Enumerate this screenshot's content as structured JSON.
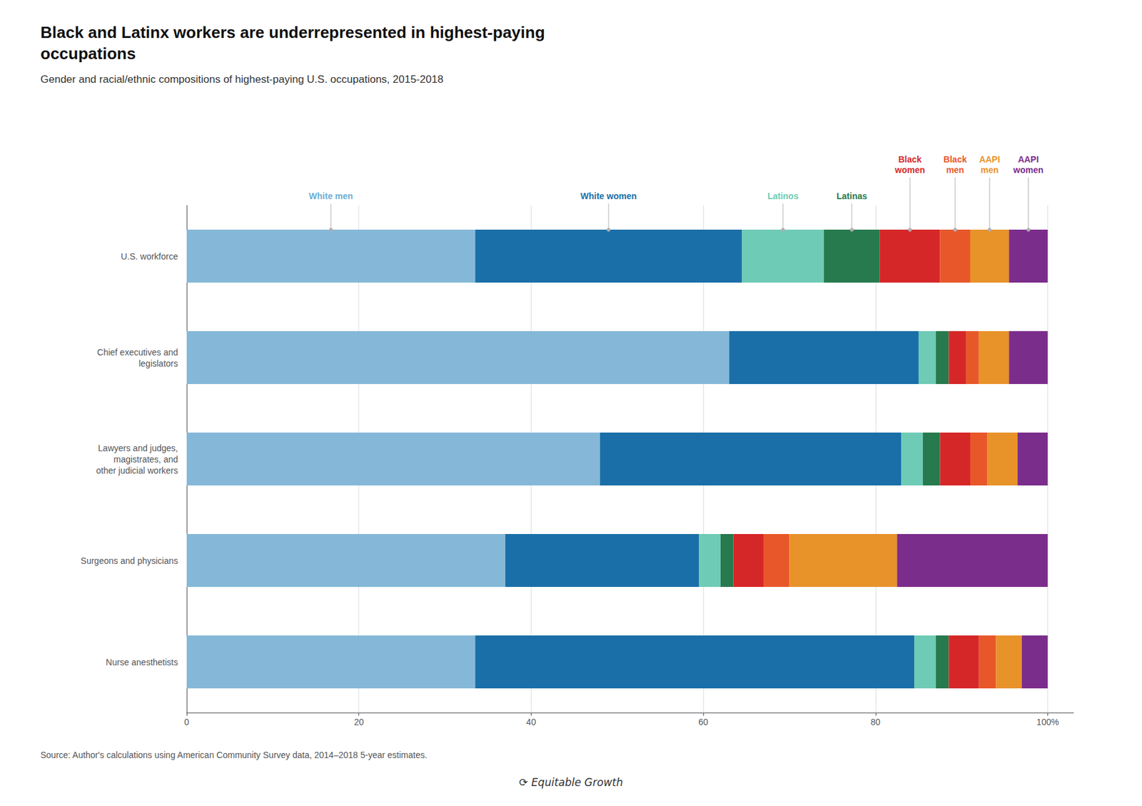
{
  "chart_data": {
    "type": "bar",
    "orientation": "horizontal",
    "stacked": true,
    "grid": true,
    "title": "Black and Latinx workers are underrepresented in highest-paying\noccupations",
    "subtitle": "Gender and racial/ethnic compositions of highest-paying U.S. occupations, 2015-2018",
    "source": "Source: Author's calculations using American Community Survey data, 2014–2018 5-year estimates.",
    "footer": "⟳ Equitable Growth",
    "categories": [
      "U.S. workforce",
      "Chief executives and\nlegislators",
      "Lawyers and judges,\nmagistrates, and\nother judicial workers",
      "Surgeons and physicians",
      "Nurse anesthetists"
    ],
    "series": [
      {
        "name": "White men",
        "color": "#85b8d8",
        "values": [
          33.5,
          63.0,
          48.0,
          37.0,
          33.5
        ]
      },
      {
        "name": "White women",
        "color": "#1a6fa8",
        "values": [
          31.0,
          22.0,
          35.0,
          22.5,
          51.0
        ]
      },
      {
        "name": "Latinos",
        "color": "#6ecbb5",
        "values": [
          9.5,
          2.0,
          2.5,
          2.5,
          2.5
        ]
      },
      {
        "name": "Latinas",
        "color": "#267a4d",
        "values": [
          6.5,
          1.5,
          2.0,
          1.5,
          1.5
        ]
      },
      {
        "name": "Black women",
        "color": "#d62728",
        "values": [
          7.0,
          2.0,
          3.5,
          3.5,
          3.5
        ]
      },
      {
        "name": "Black men",
        "color": "#e8572a",
        "values": [
          3.5,
          1.5,
          2.0,
          3.0,
          2.0
        ]
      },
      {
        "name": "AAPI men",
        "color": "#e8922a",
        "values": [
          4.5,
          3.5,
          3.5,
          12.5,
          3.0
        ]
      },
      {
        "name": "AAPI women",
        "color": "#7b2d8b",
        "values": [
          4.5,
          4.5,
          3.5,
          17.5,
          3.0
        ]
      }
    ],
    "xlim": [
      0,
      103
    ],
    "xticks": [
      0,
      20,
      40,
      60,
      80,
      {
        "value": 100,
        "label": "100%"
      }
    ],
    "annotations": [
      {
        "text": "White men",
        "color": "#6baed6",
        "category": "U.S. workforce",
        "series": "White men"
      },
      {
        "text": "White women",
        "color": "#1a6fa8",
        "category": "U.S. workforce",
        "series": "White women"
      },
      {
        "text": "Latinos",
        "color": "#6ecbb5",
        "category": "U.S. workforce",
        "series": "Latinos"
      },
      {
        "text": "Latinas",
        "color": "#267a4d",
        "category": "U.S. workforce",
        "series": "Latinas"
      },
      {
        "text": "Black\nwomen",
        "color": "#d62728",
        "category": "U.S. workforce",
        "series": "Black women"
      },
      {
        "text": "Black\nmen",
        "color": "#e8572a",
        "category": "U.S. workforce",
        "series": "Black men"
      },
      {
        "text": "AAPI\nmen",
        "color": "#e8922a",
        "category": "U.S. workforce",
        "series": "AAPI men"
      },
      {
        "text": "AAPI\nwomen",
        "color": "#7b2d8b",
        "category": "U.S. workforce",
        "series": "AAPI women"
      }
    ]
  }
}
